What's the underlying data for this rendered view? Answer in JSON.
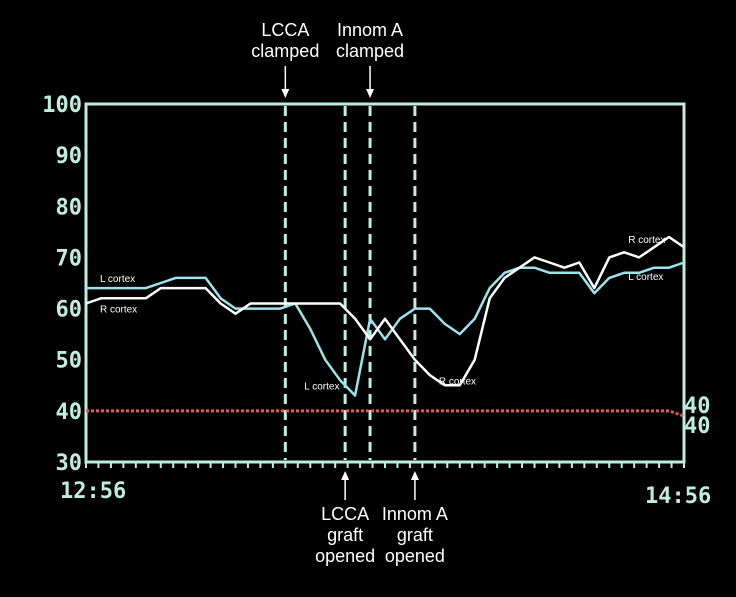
{
  "chart_data": {
    "type": "line",
    "x_start": "12:56",
    "x_end": "14:56",
    "ylim": [
      30,
      100
    ],
    "yticks": [
      30,
      40,
      50,
      60,
      70,
      80,
      90,
      100
    ],
    "x": [
      0,
      3,
      6,
      9,
      12,
      15,
      18,
      21,
      24,
      27,
      30,
      33,
      36,
      39,
      42,
      45,
      48,
      51,
      54,
      57,
      60,
      63,
      66,
      69,
      72,
      75,
      78,
      81,
      84,
      87,
      90,
      93,
      96,
      99,
      102,
      105,
      108,
      111,
      114,
      117,
      120
    ],
    "series": [
      {
        "name": "L cortex",
        "color": "#9be4ec",
        "values": [
          64,
          64,
          64,
          64,
          64,
          65,
          66,
          66,
          66,
          62,
          60,
          60,
          60,
          60,
          61,
          56,
          50,
          46,
          43,
          58,
          54,
          58,
          60,
          60,
          57,
          55,
          58,
          64,
          67,
          68,
          68,
          67,
          67,
          67,
          63,
          66,
          67,
          67,
          68,
          68,
          69
        ]
      },
      {
        "name": "R cortex",
        "color": "#ffffff",
        "values": [
          61,
          62,
          62,
          62,
          62,
          64,
          64,
          64,
          64,
          61,
          59,
          61,
          61,
          61,
          61,
          61,
          61,
          61,
          58,
          54,
          58,
          54,
          50,
          47,
          45,
          45,
          50,
          62,
          66,
          68,
          70,
          69,
          68,
          69,
          64,
          70,
          71,
          70,
          72,
          74,
          72
        ]
      },
      {
        "name": "",
        "color": "#e05a50",
        "values": [
          40,
          40,
          40,
          40,
          40,
          40,
          40,
          40,
          40,
          40,
          40,
          40,
          40,
          40,
          40,
          40,
          40,
          40,
          40,
          40,
          40,
          40,
          40,
          40,
          40,
          40,
          40,
          40,
          40,
          40,
          40,
          40,
          40,
          40,
          40,
          40,
          40,
          40,
          40,
          40,
          39
        ]
      }
    ],
    "series_labels": [
      {
        "text": "L cortex",
        "x": 2,
        "y": 65.2
      },
      {
        "text": "R cortex",
        "x": 2,
        "y": 59.2
      },
      {
        "text": "L cortex",
        "x": 43,
        "y": 44.2
      },
      {
        "text": "R cortex",
        "x": 70,
        "y": 45.2
      },
      {
        "text": "R cortex",
        "x": 108,
        "y": 72.8
      },
      {
        "text": "L cortex",
        "x": 108,
        "y": 65.6
      }
    ],
    "event_lines": [
      40,
      52,
      57,
      66
    ],
    "annotations_top": [
      {
        "text": [
          "LCCA",
          "clamped"
        ],
        "x": 40
      },
      {
        "text": [
          "Innom A",
          "clamped"
        ],
        "x": 57
      }
    ],
    "annotations_bottom": [
      {
        "text": [
          "LCCA",
          "graft",
          "opened"
        ],
        "x": 52
      },
      {
        "text": [
          "Innom A",
          "graft",
          "opened"
        ],
        "x": 66
      }
    ],
    "right_labels": [
      "40",
      "40"
    ],
    "grid": false
  }
}
